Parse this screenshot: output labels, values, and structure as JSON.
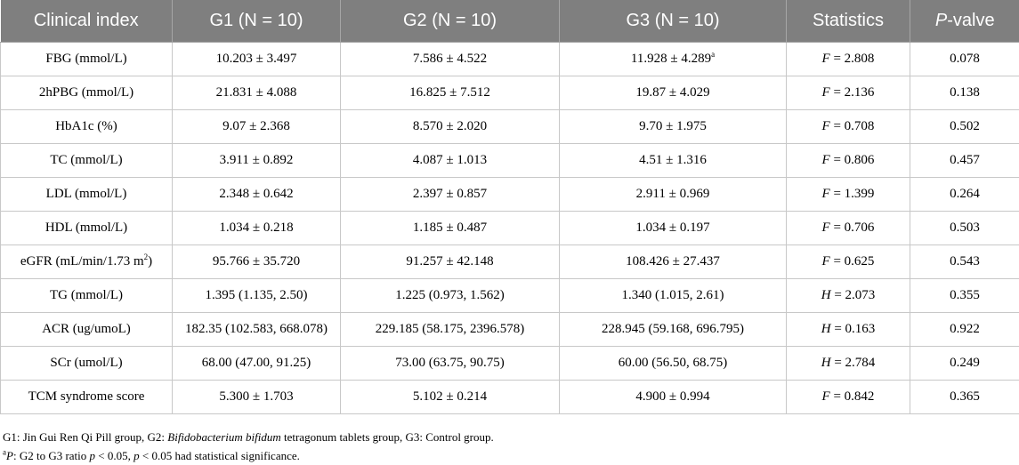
{
  "header": {
    "clinical_index": "Clinical index",
    "g1": "G1 (N = 10)",
    "g2": "G2 (N = 10)",
    "g3": "G3 (N = 10)",
    "statistics": "Statistics",
    "p_italic": "P",
    "p_rest": "-valve"
  },
  "rows": [
    {
      "index": "FBG (mmol/L)",
      "g1": "10.203 ± 3.497",
      "g2": "7.586 ± 4.522",
      "g3": "11.928 ± 4.289",
      "g3_sup": "a",
      "stat_letter": "F",
      "stat_value": " = 2.808",
      "p": "0.078"
    },
    {
      "index": "2hPBG (mmol/L)",
      "g1": "21.831 ± 4.088",
      "g2": "16.825 ± 7.512",
      "g3": "19.87 ± 4.029",
      "g3_sup": "",
      "stat_letter": "F",
      "stat_value": " = 2.136",
      "p": "0.138"
    },
    {
      "index": "HbA1c (%)",
      "g1": "9.07 ± 2.368",
      "g2": "8.570 ± 2.020",
      "g3": "9.70 ± 1.975",
      "g3_sup": "",
      "stat_letter": "F",
      "stat_value": " = 0.708",
      "p": "0.502"
    },
    {
      "index": "TC (mmol/L)",
      "g1": "3.911 ± 0.892",
      "g2": "4.087 ± 1.013",
      "g3": "4.51 ± 1.316",
      "g3_sup": "",
      "stat_letter": "F",
      "stat_value": " = 0.806",
      "p": "0.457"
    },
    {
      "index": "LDL (mmol/L)",
      "g1": "2.348 ± 0.642",
      "g2": "2.397 ± 0.857",
      "g3": "2.911 ± 0.969",
      "g3_sup": "",
      "stat_letter": "F",
      "stat_value": " = 1.399",
      "p": "0.264"
    },
    {
      "index": "HDL (mmol/L)",
      "g1": "1.034 ± 0.218",
      "g2": "1.185 ± 0.487",
      "g3": "1.034 ± 0.197",
      "g3_sup": "",
      "stat_letter": "F",
      "stat_value": " = 0.706",
      "p": "0.503"
    },
    {
      "index": "eGFR (mL/min/1.73 m",
      "index_sup": "2",
      "index_tail": ")",
      "g1": "95.766 ± 35.720",
      "g2": "91.257 ± 42.148",
      "g3": "108.426 ± 27.437",
      "g3_sup": "",
      "stat_letter": "F",
      "stat_value": " = 0.625",
      "p": "0.543"
    },
    {
      "index": "TG (mmol/L)",
      "g1": "1.395 (1.135, 2.50)",
      "g2": "1.225 (0.973, 1.562)",
      "g3": "1.340 (1.015, 2.61)",
      "g3_sup": "",
      "stat_letter": "H",
      "stat_value": " = 2.073",
      "p": "0.355"
    },
    {
      "index": "ACR (ug/umoL)",
      "g1": "182.35 (102.583, 668.078)",
      "g2": "229.185 (58.175, 2396.578)",
      "g3": "228.945 (59.168, 696.795)",
      "g3_sup": "",
      "stat_letter": "H",
      "stat_value": " = 0.163",
      "p": "0.922"
    },
    {
      "index": "SCr (umol/L)",
      "g1": "68.00 (47.00, 91.25)",
      "g2": "73.00 (63.75, 90.75)",
      "g3": "60.00 (56.50, 68.75)",
      "g3_sup": "",
      "stat_letter": "H",
      "stat_value": " = 2.784",
      "p": "0.249"
    },
    {
      "index": "TCM syndrome score",
      "g1": "5.300 ± 1.703",
      "g2": "5.102 ± 0.214",
      "g3": "4.900 ± 0.994",
      "g3_sup": "",
      "stat_letter": "F",
      "stat_value": " = 0.842",
      "p": "0.365"
    }
  ],
  "notes": {
    "line1_a": "G1: Jin Gui Ren Qi Pill group, G2: ",
    "line1_italic": "Bifidobacterium bifidum",
    "line1_b": " tetragonum tablets group, G3: Control group.",
    "line2_sup": "a",
    "line2_p": "P",
    "line2_a": ": G2 to G3 ratio ",
    "line2_p2": "p",
    "line2_b": " < 0.05, ",
    "line2_p3": "p",
    "line2_c": " < 0.05 had statistical significance."
  }
}
